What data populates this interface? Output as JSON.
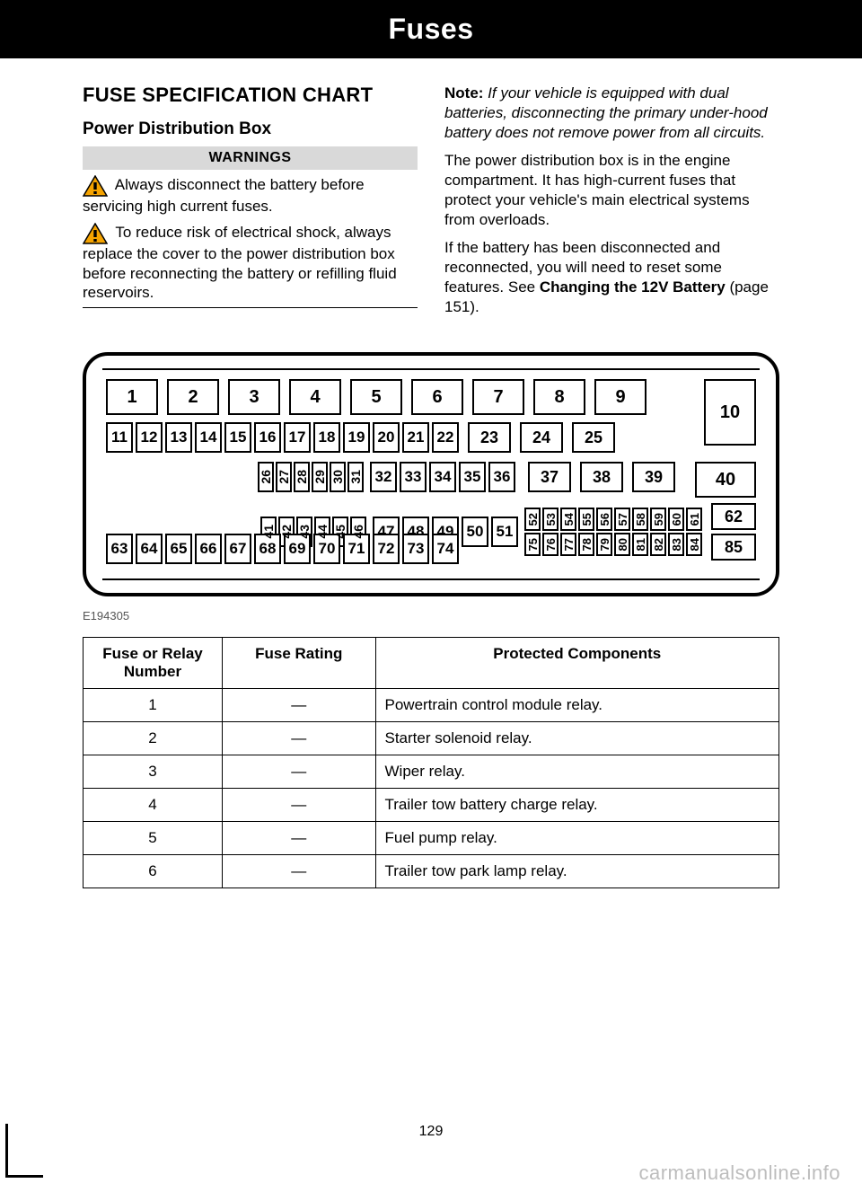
{
  "header": {
    "title": "Fuses"
  },
  "left": {
    "h2": "FUSE SPECIFICATION CHART",
    "h3": "Power Distribution Box",
    "warnings_label": "WARNINGS",
    "warning1": "Always disconnect the battery before servicing high current fuses.",
    "warning2": "To reduce risk of electrical shock, always replace the cover to the power distribution box before reconnecting the battery or refilling fluid reservoirs."
  },
  "right": {
    "note_label": "Note:",
    "note_text": " If your vehicle is equipped with dual batteries, disconnecting the primary under-hood battery does not remove power from all circuits.",
    "p1": "The power distribution box is in the engine compartment. It has high-current fuses that protect your vehicle's main electrical systems from overloads.",
    "p2a": "If the battery has been disconnected and reconnected, you will need to reset some features.  See ",
    "p2b": "Changing the 12V Battery",
    "p2c": " (page 151)."
  },
  "diagram": {
    "row1": [
      "1",
      "2",
      "3",
      "4",
      "5",
      "6",
      "7",
      "8",
      "9"
    ],
    "slot10": "10",
    "row2": [
      "11",
      "12",
      "13",
      "14",
      "15",
      "16",
      "17",
      "18",
      "19",
      "20",
      "21",
      "22"
    ],
    "row2b": [
      "23",
      "24",
      "25"
    ],
    "row3v": [
      "26",
      "27",
      "28",
      "29",
      "30",
      "31"
    ],
    "row3": [
      "32",
      "33",
      "34",
      "35",
      "36"
    ],
    "row3b": [
      "37",
      "38",
      "39"
    ],
    "slot40": "40",
    "row4v": [
      "41",
      "42",
      "43",
      "44",
      "45",
      "46"
    ],
    "row4": [
      "47",
      "48",
      "49",
      "50",
      "51"
    ],
    "row4pairs": [
      [
        "52",
        "75"
      ],
      [
        "53",
        "76"
      ],
      [
        "54",
        "77"
      ],
      [
        "55",
        "78"
      ],
      [
        "56",
        "79"
      ],
      [
        "57",
        "80"
      ],
      [
        "58",
        "81"
      ],
      [
        "59",
        "82"
      ],
      [
        "60",
        "83"
      ],
      [
        "61",
        "84"
      ]
    ],
    "slot62": "62",
    "row5": [
      "63",
      "64",
      "65",
      "66",
      "67",
      "68",
      "69",
      "70",
      "71",
      "72",
      "73",
      "74"
    ],
    "slot85": "85",
    "figure_id": "E194305"
  },
  "table": {
    "headers": [
      "Fuse or Relay Number",
      "Fuse Rating",
      "Protected Components"
    ],
    "rows": [
      [
        "1",
        "—",
        "Powertrain control module relay."
      ],
      [
        "2",
        "—",
        "Starter solenoid relay."
      ],
      [
        "3",
        "—",
        "Wiper relay."
      ],
      [
        "4",
        "—",
        "Trailer tow battery charge relay."
      ],
      [
        "5",
        "—",
        "Fuel pump relay."
      ],
      [
        "6",
        "—",
        "Trailer tow park lamp relay."
      ]
    ]
  },
  "page_number": "129",
  "watermark": "carmanualsonline.info",
  "colors": {
    "band_bg": "#d9d9d9",
    "text": "#000000",
    "watermark": "#bdbdbd"
  }
}
